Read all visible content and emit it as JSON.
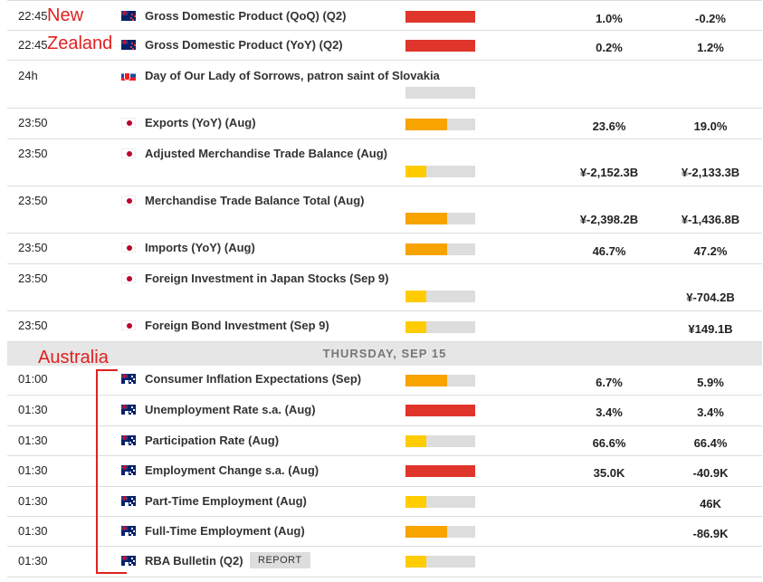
{
  "colors": {
    "high": "#e0352b",
    "medium": "#f7a300",
    "low": "#ffcc00",
    "track": "#dddddd",
    "annotation": "#e02020",
    "day_header_bg": "#e6e6e6"
  },
  "annotations": {
    "nz_line1": "New",
    "nz_line2": "Zealand",
    "australia": "Australia"
  },
  "day_header": "THURSDAY, SEP 15",
  "events": [
    {
      "time": "22:45",
      "flag": "nz-flag-icon",
      "title": "Gross Domestic Product (QoQ) (Q2)",
      "impact": "high",
      "impact_level": 1.0,
      "actual": "1.0%",
      "previous": "-0.2%"
    },
    {
      "time": "22:45",
      "flag": "nz-flag-icon",
      "title": "Gross Domestic Product (YoY) (Q2)",
      "impact": "high",
      "impact_level": 1.0,
      "actual": "0.2%",
      "previous": "1.2%"
    },
    {
      "time": "24h",
      "flag": "slovakia-flag-icon",
      "title": "Day of Our Lady of Sorrows, patron saint of Slovakia",
      "impact": "none",
      "impact_level": 0,
      "actual": "",
      "previous": ""
    },
    {
      "time": "23:50",
      "flag": "japan-flag-icon",
      "title": "Exports (YoY) (Aug)",
      "impact": "medium",
      "impact_level": 0.6,
      "actual": "23.6%",
      "previous": "19.0%"
    },
    {
      "time": "23:50",
      "flag": "japan-flag-icon",
      "title": "Adjusted Merchandise Trade Balance (Aug)",
      "impact": "low",
      "impact_level": 0.3,
      "actual": "¥-2,152.3B",
      "previous": "¥-2,133.3B"
    },
    {
      "time": "23:50",
      "flag": "japan-flag-icon",
      "title": "Merchandise Trade Balance Total (Aug)",
      "impact": "medium",
      "impact_level": 0.6,
      "actual": "¥-2,398.2B",
      "previous": "¥-1,436.8B"
    },
    {
      "time": "23:50",
      "flag": "japan-flag-icon",
      "title": "Imports (YoY) (Aug)",
      "impact": "medium",
      "impact_level": 0.6,
      "actual": "46.7%",
      "previous": "47.2%"
    },
    {
      "time": "23:50",
      "flag": "japan-flag-icon",
      "title": "Foreign Investment in Japan Stocks (Sep 9)",
      "impact": "low",
      "impact_level": 0.3,
      "actual": "",
      "previous": "¥-704.2B"
    },
    {
      "time": "23:50",
      "flag": "japan-flag-icon",
      "title": "Foreign Bond Investment (Sep 9)",
      "impact": "low",
      "impact_level": 0.3,
      "actual": "",
      "previous": "¥149.1B"
    },
    {
      "time": "01:00",
      "flag": "australia-flag-icon",
      "title": "Consumer Inflation Expectations (Sep)",
      "impact": "medium",
      "impact_level": 0.6,
      "actual": "6.7%",
      "previous": "5.9%"
    },
    {
      "time": "01:30",
      "flag": "australia-flag-icon",
      "title": "Unemployment Rate s.a. (Aug)",
      "impact": "high",
      "impact_level": 1.0,
      "actual": "3.4%",
      "previous": "3.4%"
    },
    {
      "time": "01:30",
      "flag": "australia-flag-icon",
      "title": "Participation Rate (Aug)",
      "impact": "low",
      "impact_level": 0.3,
      "actual": "66.6%",
      "previous": "66.4%"
    },
    {
      "time": "01:30",
      "flag": "australia-flag-icon",
      "title": "Employment Change s.a. (Aug)",
      "impact": "high",
      "impact_level": 1.0,
      "actual": "35.0K",
      "previous": "-40.9K"
    },
    {
      "time": "01:30",
      "flag": "australia-flag-icon",
      "title": "Part-Time Employment (Aug)",
      "impact": "low",
      "impact_level": 0.3,
      "actual": "",
      "previous": "46K"
    },
    {
      "time": "01:30",
      "flag": "australia-flag-icon",
      "title": "Full-Time Employment (Aug)",
      "impact": "medium",
      "impact_level": 0.6,
      "actual": "",
      "previous": "-86.9K"
    },
    {
      "time": "01:30",
      "flag": "australia-flag-icon",
      "title": "RBA Bulletin (Q2)",
      "impact": "low",
      "impact_level": 0.3,
      "actual": "",
      "previous": "",
      "report_label": "REPORT"
    }
  ]
}
